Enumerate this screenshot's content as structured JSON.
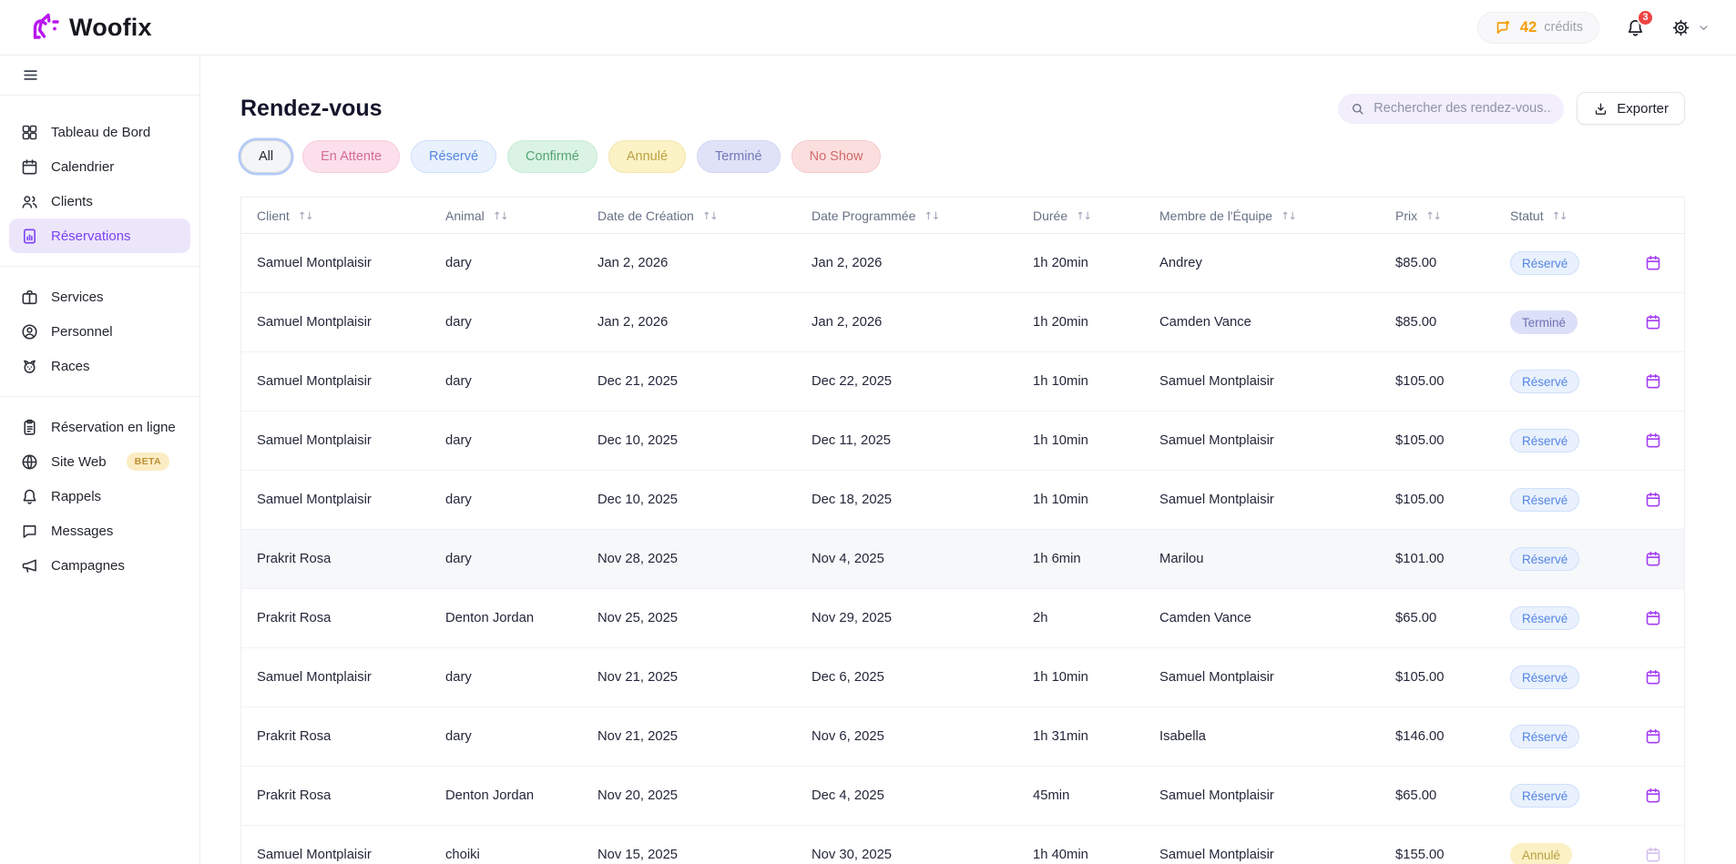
{
  "brand": {
    "name": "Woofix",
    "logo_color": "#b816f0"
  },
  "topbar": {
    "credits_value": "42",
    "credits_label": "crédits",
    "credits_color": "#f59e0b",
    "notification_count": "3",
    "notification_color": "#ee4444"
  },
  "sidebar": {
    "groups": [
      {
        "items": [
          {
            "id": "tableau-de-bord",
            "label": "Tableau de Bord",
            "icon": "dashboard",
            "active": false
          },
          {
            "id": "calendrier",
            "label": "Calendrier",
            "icon": "calendar",
            "active": false
          },
          {
            "id": "clients",
            "label": "Clients",
            "icon": "clients",
            "active": false
          },
          {
            "id": "reservations",
            "label": "Réservations",
            "icon": "reservations",
            "active": true
          }
        ]
      },
      {
        "items": [
          {
            "id": "services",
            "label": "Services",
            "icon": "briefcase",
            "active": false
          },
          {
            "id": "personnel",
            "label": "Personnel",
            "icon": "person",
            "active": false
          },
          {
            "id": "races",
            "label": "Races",
            "icon": "dog",
            "active": false
          }
        ]
      },
      {
        "items": [
          {
            "id": "reservation-en-ligne",
            "label": "Réservation en ligne",
            "icon": "clipboard",
            "active": false
          },
          {
            "id": "site-web",
            "label": "Site Web",
            "icon": "globe",
            "badge": "BETA",
            "active": false
          },
          {
            "id": "rappels",
            "label": "Rappels",
            "icon": "bell",
            "active": false
          },
          {
            "id": "messages",
            "label": "Messages",
            "icon": "chat",
            "active": false
          },
          {
            "id": "campagnes",
            "label": "Campagnes",
            "icon": "megaphone",
            "active": false
          }
        ]
      }
    ],
    "active_color": "#7c42f5"
  },
  "page": {
    "title": "Rendez-vous",
    "search_placeholder": "Rechercher des rendez-vous...",
    "export_label": "Exporter"
  },
  "filters": [
    {
      "id": "all",
      "label": "All",
      "bg": "#f4f5f7",
      "color": "#23262e",
      "border": "#d4d8df",
      "selected": true
    },
    {
      "id": "en-attente",
      "label": "En Attente",
      "bg": "#fbdfeb",
      "color": "#d66b95",
      "border": "#f7cede",
      "selected": false
    },
    {
      "id": "reserve",
      "label": "Réservé",
      "bg": "#e9f1fd",
      "color": "#5585e2",
      "border": "#cfdffb",
      "selected": false
    },
    {
      "id": "confirme",
      "label": "Confirmé",
      "bg": "#daf3e4",
      "color": "#54a375",
      "border": "#c5ecd5",
      "selected": false
    },
    {
      "id": "annule",
      "label": "Annulé",
      "bg": "#fbf2c6",
      "color": "#bda242",
      "border": "#f4e7ab",
      "selected": false
    },
    {
      "id": "termine",
      "label": "Terminé",
      "bg": "#e0e3f8",
      "color": "#7179b8",
      "border": "#d2d6f2",
      "selected": false
    },
    {
      "id": "no-show",
      "label": "No Show",
      "bg": "#fbdfdf",
      "color": "#d26969",
      "border": "#f6caca",
      "selected": false
    }
  ],
  "status_styles": {
    "Réservé": {
      "bg": "#e9f1fd",
      "color": "#5585e2",
      "border": "#cfe0fa"
    },
    "Terminé": {
      "bg": "#dcdff8",
      "color": "#6b72b4",
      "border": "#dcdff8"
    },
    "Annulé": {
      "bg": "#fbf1c5",
      "color": "#b99f3f",
      "border": "#fbf1c5"
    }
  },
  "table": {
    "columns": [
      "Client",
      "Animal",
      "Date de Création",
      "Date Programmée",
      "Durée",
      "Membre de l'Équipe",
      "Prix",
      "Statut"
    ],
    "rows": [
      {
        "client": "Samuel Montplaisir",
        "animal": "dary",
        "created": "Jan 2, 2026",
        "scheduled": "Jan 2, 2026",
        "duration": "1h 20min",
        "staff": "Andrey",
        "price": "$85.00",
        "status": "Réservé",
        "highlighted": false,
        "muted_action": false
      },
      {
        "client": "Samuel Montplaisir",
        "animal": "dary",
        "created": "Jan 2, 2026",
        "scheduled": "Jan 2, 2026",
        "duration": "1h 20min",
        "staff": "Camden Vance",
        "price": "$85.00",
        "status": "Terminé",
        "highlighted": false,
        "muted_action": false
      },
      {
        "client": "Samuel Montplaisir",
        "animal": "dary",
        "created": "Dec 21, 2025",
        "scheduled": "Dec 22, 2025",
        "duration": "1h 10min",
        "staff": "Samuel Montplaisir",
        "price": "$105.00",
        "status": "Réservé",
        "highlighted": false,
        "muted_action": false
      },
      {
        "client": "Samuel Montplaisir",
        "animal": "dary",
        "created": "Dec 10, 2025",
        "scheduled": "Dec 11, 2025",
        "duration": "1h 10min",
        "staff": "Samuel Montplaisir",
        "price": "$105.00",
        "status": "Réservé",
        "highlighted": false,
        "muted_action": false
      },
      {
        "client": "Samuel Montplaisir",
        "animal": "dary",
        "created": "Dec 10, 2025",
        "scheduled": "Dec 18, 2025",
        "duration": "1h 10min",
        "staff": "Samuel Montplaisir",
        "price": "$105.00",
        "status": "Réservé",
        "highlighted": false,
        "muted_action": false
      },
      {
        "client": "Prakrit Rosa",
        "animal": "dary",
        "created": "Nov 28, 2025",
        "scheduled": "Nov 4, 2025",
        "duration": "1h 6min",
        "staff": "Marilou",
        "price": "$101.00",
        "status": "Réservé",
        "highlighted": true,
        "muted_action": false
      },
      {
        "client": "Prakrit Rosa",
        "animal": "Denton Jordan",
        "created": "Nov 25, 2025",
        "scheduled": "Nov 29, 2025",
        "duration": "2h",
        "staff": "Camden Vance",
        "price": "$65.00",
        "status": "Réservé",
        "highlighted": false,
        "muted_action": false
      },
      {
        "client": "Samuel Montplaisir",
        "animal": "dary",
        "created": "Nov 21, 2025",
        "scheduled": "Dec 6, 2025",
        "duration": "1h 10min",
        "staff": "Samuel Montplaisir",
        "price": "$105.00",
        "status": "Réservé",
        "highlighted": false,
        "muted_action": false
      },
      {
        "client": "Prakrit Rosa",
        "animal": "dary",
        "created": "Nov 21, 2025",
        "scheduled": "Nov 6, 2025",
        "duration": "1h 31min",
        "staff": "Isabella",
        "price": "$146.00",
        "status": "Réservé",
        "highlighted": false,
        "muted_action": false
      },
      {
        "client": "Prakrit Rosa",
        "animal": "Denton Jordan",
        "created": "Nov 20, 2025",
        "scheduled": "Dec 4, 2025",
        "duration": "45min",
        "staff": "Samuel Montplaisir",
        "price": "$65.00",
        "status": "Réservé",
        "highlighted": false,
        "muted_action": false
      },
      {
        "client": "Samuel Montplaisir",
        "animal": "choiki",
        "created": "Nov 15, 2025",
        "scheduled": "Nov 30, 2025",
        "duration": "1h 40min",
        "staff": "Samuel Montplaisir",
        "price": "$155.00",
        "status": "Annulé",
        "highlighted": false,
        "muted_action": true
      }
    ]
  }
}
